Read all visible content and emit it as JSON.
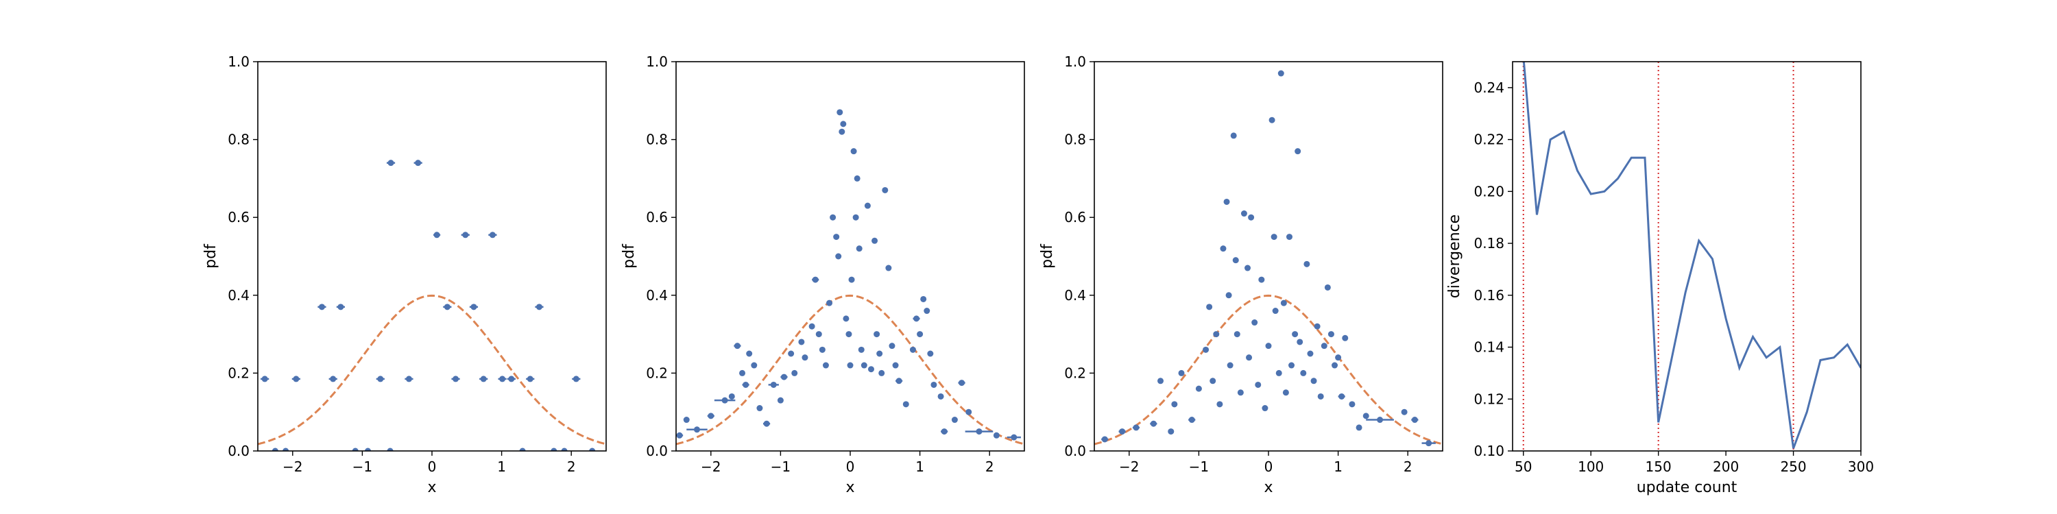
{
  "chart_data": [
    {
      "type": "scatter",
      "xlabel": "x",
      "ylabel": "pdf",
      "xlim": [
        -2.5,
        2.5
      ],
      "ylim": [
        0,
        1.0
      ],
      "xticks": [
        "−2",
        "−1",
        "0",
        "1",
        "2"
      ],
      "yticks": [
        "0.0",
        "0.2",
        "0.4",
        "0.6",
        "0.8",
        "1.0"
      ],
      "colors": {
        "points": "#4c72b0",
        "curve": "#dd8452"
      },
      "reference_curve": "standard normal pdf",
      "points": [
        {
          "x": -2.4,
          "y": 0.185,
          "w": 0.12
        },
        {
          "x": -1.95,
          "y": 0.185,
          "w": 0.12
        },
        {
          "x": -1.58,
          "y": 0.37,
          "w": 0.12
        },
        {
          "x": -1.31,
          "y": 0.37,
          "w": 0.12
        },
        {
          "x": -1.42,
          "y": 0.185,
          "w": 0.12
        },
        {
          "x": -0.74,
          "y": 0.185,
          "w": 0.12
        },
        {
          "x": -0.59,
          "y": 0.74,
          "w": 0.12
        },
        {
          "x": -0.33,
          "y": 0.185,
          "w": 0.12
        },
        {
          "x": -0.2,
          "y": 0.74,
          "w": 0.12
        },
        {
          "x": 0.07,
          "y": 0.555,
          "w": 0.1
        },
        {
          "x": 0.22,
          "y": 0.37,
          "w": 0.12
        },
        {
          "x": 0.34,
          "y": 0.185,
          "w": 0.12
        },
        {
          "x": 0.48,
          "y": 0.555,
          "w": 0.12
        },
        {
          "x": 0.6,
          "y": 0.37,
          "w": 0.12
        },
        {
          "x": 0.74,
          "y": 0.185,
          "w": 0.12
        },
        {
          "x": 0.87,
          "y": 0.555,
          "w": 0.12
        },
        {
          "x": 1.01,
          "y": 0.185,
          "w": 0.12
        },
        {
          "x": 1.14,
          "y": 0.185,
          "w": 0.12
        },
        {
          "x": 1.41,
          "y": 0.185,
          "w": 0.12
        },
        {
          "x": 1.54,
          "y": 0.37,
          "w": 0.12
        },
        {
          "x": 2.07,
          "y": 0.185,
          "w": 0.12
        },
        {
          "x": -2.25,
          "y": 0,
          "w": 0.08
        },
        {
          "x": -2.1,
          "y": 0,
          "w": 0.08
        },
        {
          "x": -1.1,
          "y": 0,
          "w": 0.08
        },
        {
          "x": -0.92,
          "y": 0,
          "w": 0.08
        },
        {
          "x": -0.6,
          "y": 0,
          "w": 0.08
        },
        {
          "x": 1.3,
          "y": 0,
          "w": 0.08
        },
        {
          "x": 1.75,
          "y": 0,
          "w": 0.08
        },
        {
          "x": 1.9,
          "y": 0,
          "w": 0.08
        },
        {
          "x": 2.3,
          "y": 0,
          "w": 0.08
        }
      ]
    },
    {
      "type": "scatter",
      "xlabel": "x",
      "ylabel": "pdf",
      "xlim": [
        -2.5,
        2.5
      ],
      "ylim": [
        0,
        1.0
      ],
      "xticks": [
        "−2",
        "−1",
        "0",
        "1",
        "2"
      ],
      "yticks": [
        "0.0",
        "0.2",
        "0.4",
        "0.6",
        "0.8",
        "1.0"
      ],
      "colors": {
        "points": "#4c72b0",
        "curve": "#dd8452"
      },
      "reference_curve": "standard normal pdf",
      "points": [
        {
          "x": -2.45,
          "y": 0.04,
          "w": 0.1
        },
        {
          "x": -2.35,
          "y": 0.08,
          "w": 0
        },
        {
          "x": -2.2,
          "y": 0.055,
          "w": 0.3
        },
        {
          "x": -2.0,
          "y": 0.09,
          "w": 0.1
        },
        {
          "x": -1.8,
          "y": 0.13,
          "w": 0.3
        },
        {
          "x": -1.7,
          "y": 0.14,
          "w": 0
        },
        {
          "x": -1.62,
          "y": 0.27,
          "w": 0.1
        },
        {
          "x": -1.55,
          "y": 0.2,
          "w": 0
        },
        {
          "x": -1.5,
          "y": 0.17,
          "w": 0.1
        },
        {
          "x": -1.45,
          "y": 0.25,
          "w": 0
        },
        {
          "x": -1.38,
          "y": 0.22,
          "w": 0
        },
        {
          "x": -1.3,
          "y": 0.11,
          "w": 0
        },
        {
          "x": -1.2,
          "y": 0.07,
          "w": 0.1
        },
        {
          "x": -1.1,
          "y": 0.17,
          "w": 0.15
        },
        {
          "x": -1.0,
          "y": 0.13,
          "w": 0
        },
        {
          "x": -0.95,
          "y": 0.19,
          "w": 0.1
        },
        {
          "x": -0.85,
          "y": 0.25,
          "w": 0
        },
        {
          "x": -0.8,
          "y": 0.2,
          "w": 0
        },
        {
          "x": -0.7,
          "y": 0.28,
          "w": 0
        },
        {
          "x": -0.65,
          "y": 0.24,
          "w": 0
        },
        {
          "x": -0.55,
          "y": 0.32,
          "w": 0
        },
        {
          "x": -0.5,
          "y": 0.44,
          "w": 0.1
        },
        {
          "x": -0.45,
          "y": 0.3,
          "w": 0
        },
        {
          "x": -0.4,
          "y": 0.26,
          "w": 0
        },
        {
          "x": -0.35,
          "y": 0.22,
          "w": 0
        },
        {
          "x": -0.3,
          "y": 0.38,
          "w": 0
        },
        {
          "x": -0.25,
          "y": 0.6,
          "w": 0
        },
        {
          "x": -0.2,
          "y": 0.55,
          "w": 0
        },
        {
          "x": -0.17,
          "y": 0.5,
          "w": 0
        },
        {
          "x": -0.15,
          "y": 0.87,
          "w": 0
        },
        {
          "x": -0.12,
          "y": 0.82,
          "w": 0
        },
        {
          "x": -0.1,
          "y": 0.84,
          "w": 0
        },
        {
          "x": -0.06,
          "y": 0.34,
          "w": 0
        },
        {
          "x": -0.02,
          "y": 0.3,
          "w": 0
        },
        {
          "x": 0.0,
          "y": 0.22,
          "w": 0
        },
        {
          "x": 0.02,
          "y": 0.44,
          "w": 0
        },
        {
          "x": 0.05,
          "y": 0.77,
          "w": 0
        },
        {
          "x": 0.08,
          "y": 0.6,
          "w": 0
        },
        {
          "x": 0.1,
          "y": 0.7,
          "w": 0
        },
        {
          "x": 0.13,
          "y": 0.52,
          "w": 0
        },
        {
          "x": 0.16,
          "y": 0.26,
          "w": 0
        },
        {
          "x": 0.2,
          "y": 0.22,
          "w": 0
        },
        {
          "x": 0.25,
          "y": 0.63,
          "w": 0
        },
        {
          "x": 0.3,
          "y": 0.21,
          "w": 0
        },
        {
          "x": 0.35,
          "y": 0.54,
          "w": 0
        },
        {
          "x": 0.38,
          "y": 0.3,
          "w": 0
        },
        {
          "x": 0.42,
          "y": 0.25,
          "w": 0
        },
        {
          "x": 0.45,
          "y": 0.2,
          "w": 0
        },
        {
          "x": 0.5,
          "y": 0.67,
          "w": 0
        },
        {
          "x": 0.55,
          "y": 0.47,
          "w": 0
        },
        {
          "x": 0.6,
          "y": 0.27,
          "w": 0
        },
        {
          "x": 0.65,
          "y": 0.22,
          "w": 0
        },
        {
          "x": 0.7,
          "y": 0.18,
          "w": 0.1
        },
        {
          "x": 0.8,
          "y": 0.12,
          "w": 0
        },
        {
          "x": 0.9,
          "y": 0.26,
          "w": 0
        },
        {
          "x": 0.95,
          "y": 0.34,
          "w": 0.1
        },
        {
          "x": 1.0,
          "y": 0.3,
          "w": 0
        },
        {
          "x": 1.05,
          "y": 0.39,
          "w": 0
        },
        {
          "x": 1.1,
          "y": 0.36,
          "w": 0
        },
        {
          "x": 1.15,
          "y": 0.25,
          "w": 0
        },
        {
          "x": 1.2,
          "y": 0.17,
          "w": 0
        },
        {
          "x": 1.3,
          "y": 0.14,
          "w": 0
        },
        {
          "x": 1.35,
          "y": 0.05,
          "w": 0.1
        },
        {
          "x": 1.5,
          "y": 0.08,
          "w": 0
        },
        {
          "x": 1.6,
          "y": 0.175,
          "w": 0.1
        },
        {
          "x": 1.7,
          "y": 0.1,
          "w": 0
        },
        {
          "x": 1.85,
          "y": 0.05,
          "w": 0.4
        },
        {
          "x": 2.1,
          "y": 0.04,
          "w": 0
        },
        {
          "x": 2.35,
          "y": 0.035,
          "w": 0.2
        }
      ]
    },
    {
      "type": "scatter",
      "xlabel": "x",
      "ylabel": "pdf",
      "xlim": [
        -2.5,
        2.5
      ],
      "ylim": [
        0,
        1.0
      ],
      "xticks": [
        "−2",
        "−1",
        "0",
        "1",
        "2"
      ],
      "yticks": [
        "0.0",
        "0.2",
        "0.4",
        "0.6",
        "0.8",
        "1.0"
      ],
      "colors": {
        "points": "#4c72b0",
        "curve": "#dd8452"
      },
      "reference_curve": "standard normal pdf",
      "points": [
        {
          "x": -2.35,
          "y": 0.03,
          "w": 0.1
        },
        {
          "x": -2.1,
          "y": 0.05,
          "w": 0.1
        },
        {
          "x": -1.9,
          "y": 0.06,
          "w": 0.1
        },
        {
          "x": -1.65,
          "y": 0.07,
          "w": 0.1
        },
        {
          "x": -1.55,
          "y": 0.18,
          "w": 0
        },
        {
          "x": -1.4,
          "y": 0.05,
          "w": 0
        },
        {
          "x": -1.35,
          "y": 0.12,
          "w": 0
        },
        {
          "x": -1.25,
          "y": 0.2,
          "w": 0
        },
        {
          "x": -1.1,
          "y": 0.08,
          "w": 0.1
        },
        {
          "x": -1.0,
          "y": 0.16,
          "w": 0
        },
        {
          "x": -0.9,
          "y": 0.26,
          "w": 0
        },
        {
          "x": -0.85,
          "y": 0.37,
          "w": 0
        },
        {
          "x": -0.8,
          "y": 0.18,
          "w": 0
        },
        {
          "x": -0.75,
          "y": 0.3,
          "w": 0
        },
        {
          "x": -0.7,
          "y": 0.12,
          "w": 0
        },
        {
          "x": -0.65,
          "y": 0.52,
          "w": 0
        },
        {
          "x": -0.6,
          "y": 0.64,
          "w": 0
        },
        {
          "x": -0.57,
          "y": 0.4,
          "w": 0
        },
        {
          "x": -0.55,
          "y": 0.22,
          "w": 0
        },
        {
          "x": -0.5,
          "y": 0.81,
          "w": 0
        },
        {
          "x": -0.47,
          "y": 0.49,
          "w": 0
        },
        {
          "x": -0.45,
          "y": 0.3,
          "w": 0
        },
        {
          "x": -0.4,
          "y": 0.15,
          "w": 0
        },
        {
          "x": -0.35,
          "y": 0.61,
          "w": 0
        },
        {
          "x": -0.3,
          "y": 0.47,
          "w": 0
        },
        {
          "x": -0.28,
          "y": 0.24,
          "w": 0
        },
        {
          "x": -0.25,
          "y": 0.6,
          "w": 0
        },
        {
          "x": -0.2,
          "y": 0.33,
          "w": 0
        },
        {
          "x": -0.15,
          "y": 0.17,
          "w": 0
        },
        {
          "x": -0.1,
          "y": 0.44,
          "w": 0
        },
        {
          "x": -0.05,
          "y": 0.11,
          "w": 0
        },
        {
          "x": 0.0,
          "y": 0.27,
          "w": 0
        },
        {
          "x": 0.05,
          "y": 0.85,
          "w": 0
        },
        {
          "x": 0.08,
          "y": 0.55,
          "w": 0
        },
        {
          "x": 0.1,
          "y": 0.36,
          "w": 0
        },
        {
          "x": 0.15,
          "y": 0.2,
          "w": 0
        },
        {
          "x": 0.18,
          "y": 0.97,
          "w": 0
        },
        {
          "x": 0.22,
          "y": 0.38,
          "w": 0
        },
        {
          "x": 0.25,
          "y": 0.15,
          "w": 0
        },
        {
          "x": 0.3,
          "y": 0.55,
          "w": 0
        },
        {
          "x": 0.33,
          "y": 0.22,
          "w": 0
        },
        {
          "x": 0.38,
          "y": 0.3,
          "w": 0
        },
        {
          "x": 0.42,
          "y": 0.77,
          "w": 0
        },
        {
          "x": 0.45,
          "y": 0.28,
          "w": 0
        },
        {
          "x": 0.5,
          "y": 0.2,
          "w": 0
        },
        {
          "x": 0.55,
          "y": 0.48,
          "w": 0
        },
        {
          "x": 0.6,
          "y": 0.25,
          "w": 0
        },
        {
          "x": 0.65,
          "y": 0.18,
          "w": 0
        },
        {
          "x": 0.7,
          "y": 0.32,
          "w": 0
        },
        {
          "x": 0.75,
          "y": 0.14,
          "w": 0
        },
        {
          "x": 0.8,
          "y": 0.27,
          "w": 0
        },
        {
          "x": 0.85,
          "y": 0.42,
          "w": 0
        },
        {
          "x": 0.9,
          "y": 0.3,
          "w": 0
        },
        {
          "x": 0.95,
          "y": 0.22,
          "w": 0
        },
        {
          "x": 1.0,
          "y": 0.24,
          "w": 0
        },
        {
          "x": 1.05,
          "y": 0.14,
          "w": 0.1
        },
        {
          "x": 1.1,
          "y": 0.29,
          "w": 0
        },
        {
          "x": 1.2,
          "y": 0.12,
          "w": 0
        },
        {
          "x": 1.3,
          "y": 0.06,
          "w": 0
        },
        {
          "x": 1.4,
          "y": 0.09,
          "w": 0
        },
        {
          "x": 1.6,
          "y": 0.08,
          "w": 0.4
        },
        {
          "x": 1.95,
          "y": 0.1,
          "w": 0
        },
        {
          "x": 2.1,
          "y": 0.08,
          "w": 0.1
        },
        {
          "x": 2.3,
          "y": 0.02,
          "w": 0.2
        }
      ]
    },
    {
      "type": "line",
      "xlabel": "update count",
      "ylabel": "divergence",
      "xlim": [
        42,
        300
      ],
      "ylim": [
        0.1,
        0.25
      ],
      "xticks": [
        "50",
        "100",
        "150",
        "200",
        "250",
        "300"
      ],
      "yticks": [
        "0.10",
        "0.12",
        "0.14",
        "0.16",
        "0.18",
        "0.20",
        "0.22",
        "0.24"
      ],
      "colors": {
        "line": "#4c72b0",
        "markers": "#d62728"
      },
      "vlines": [
        50,
        150,
        250
      ],
      "series": [
        {
          "x": [
            50,
            60,
            70,
            80,
            90,
            100,
            110,
            120,
            130,
            140,
            150,
            160,
            170,
            180,
            190,
            200,
            210,
            220,
            230,
            240,
            250,
            260,
            270,
            280,
            290,
            300
          ],
          "values": [
            0.252,
            0.191,
            0.22,
            0.223,
            0.208,
            0.199,
            0.2,
            0.205,
            0.213,
            0.213,
            0.111,
            0.136,
            0.161,
            0.181,
            0.174,
            0.151,
            0.132,
            0.144,
            0.136,
            0.14,
            0.101,
            0.115,
            0.135,
            0.136,
            0.141,
            0.132
          ]
        }
      ]
    }
  ]
}
